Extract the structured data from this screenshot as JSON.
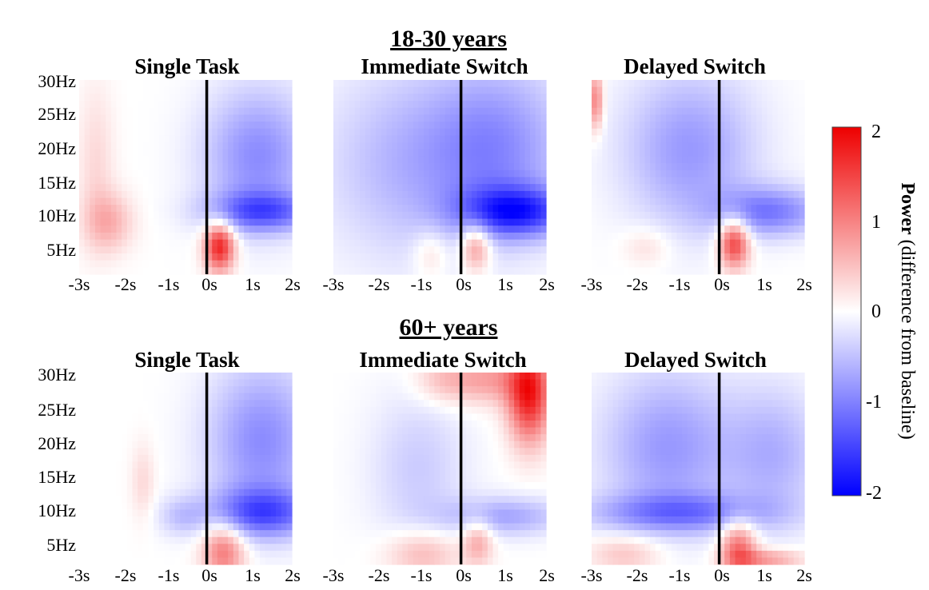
{
  "figure": {
    "groups": [
      {
        "title": "18-30 years",
        "panels": [
          {
            "title": "Single Task"
          },
          {
            "title": "Immediate Switch"
          },
          {
            "title": "Delayed Switch"
          }
        ]
      },
      {
        "title": "60+ years",
        "panels": [
          {
            "title": "Single Task"
          },
          {
            "title": "Immediate Switch"
          },
          {
            "title": "Delayed Switch"
          }
        ]
      }
    ],
    "y_ticks": [
      "30Hz",
      "25Hz",
      "20Hz",
      "15Hz",
      "10Hz",
      "5Hz"
    ],
    "x_ticks": [
      "-3s",
      "-2s",
      "-1s",
      "0s",
      "1s",
      "2s"
    ],
    "colorbar": {
      "label_bold": "Power",
      "label_rest": " (difference from baseline)",
      "ticks": [
        "2",
        "1",
        "0",
        "-1",
        "-2"
      ],
      "colors": {
        "max": "#ee0000",
        "mid": "#ffffff",
        "min": "#0000ff"
      }
    }
  },
  "chart_data": {
    "type": "heatmap",
    "xlabel": "",
    "ylabel": "",
    "x_range_s": [
      -3,
      2
    ],
    "y_range_hz": [
      2,
      30
    ],
    "color_range": [
      -2,
      2
    ],
    "colorbar_label": "Power (difference from baseline)",
    "event_marker_s": 0,
    "panels": [
      {
        "group": "18-30 years",
        "condition": "Single Task",
        "blobs": [
          {
            "t": 0.3,
            "f": 6,
            "dt": 0.25,
            "df": 2.5,
            "power": 1.8
          },
          {
            "t": -2.3,
            "f": 9.5,
            "dt": 0.4,
            "df": 3,
            "power": 0.6
          },
          {
            "t": -2.6,
            "f": 18,
            "dt": 0.3,
            "df": 8,
            "power": 0.3
          },
          {
            "t": 1.3,
            "f": 11,
            "dt": 0.9,
            "df": 2,
            "power": -1.1
          },
          {
            "t": 1.2,
            "f": 19,
            "dt": 0.9,
            "df": 7,
            "power": -0.9
          }
        ]
      },
      {
        "group": "18-30 years",
        "condition": "Immediate Switch",
        "blobs": [
          {
            "t": 0.35,
            "f": 6,
            "dt": 0.25,
            "df": 2.5,
            "power": 1.0
          },
          {
            "t": -0.7,
            "f": 5,
            "dt": 0.3,
            "df": 2.5,
            "power": 0.4
          },
          {
            "t": 1.3,
            "f": 11,
            "dt": 0.9,
            "df": 2.5,
            "power": -1.5
          },
          {
            "t": 0.8,
            "f": 20,
            "dt": 1.2,
            "df": 9,
            "power": -0.9
          },
          {
            "t": -1.5,
            "f": 18,
            "dt": 1.3,
            "df": 10,
            "power": -0.5
          }
        ]
      },
      {
        "group": "18-30 years",
        "condition": "Delayed Switch",
        "blobs": [
          {
            "t": 0.35,
            "f": 6.5,
            "dt": 0.25,
            "df": 2.5,
            "power": 1.6
          },
          {
            "t": -2.9,
            "f": 27,
            "dt": 0.12,
            "df": 3,
            "power": 1.0
          },
          {
            "t": -1.7,
            "f": 6,
            "dt": 0.4,
            "df": 2,
            "power": 0.3
          },
          {
            "t": 1.2,
            "f": 11,
            "dt": 0.9,
            "df": 2.5,
            "power": -1.0
          },
          {
            "t": -0.7,
            "f": 20,
            "dt": 1.1,
            "df": 8,
            "power": -0.8
          }
        ]
      },
      {
        "group": "60+ years",
        "condition": "Single Task",
        "blobs": [
          {
            "t": 0.4,
            "f": 4,
            "dt": 0.35,
            "df": 3,
            "power": 1.1
          },
          {
            "t": -1.5,
            "f": 14,
            "dt": 0.2,
            "df": 4,
            "power": 0.3
          },
          {
            "t": 1.3,
            "f": 9.5,
            "dt": 0.9,
            "df": 2.5,
            "power": -1.2
          },
          {
            "t": 1.3,
            "f": 20,
            "dt": 0.9,
            "df": 8,
            "power": -0.9
          },
          {
            "t": -0.6,
            "f": 9,
            "dt": 0.4,
            "df": 2,
            "power": -0.4
          }
        ]
      },
      {
        "group": "60+ years",
        "condition": "Immediate Switch",
        "blobs": [
          {
            "t": 1.6,
            "f": 27,
            "dt": 0.35,
            "df": 5,
            "power": 1.8
          },
          {
            "t": 0.7,
            "f": 29,
            "dt": 0.6,
            "df": 2.5,
            "power": 0.7
          },
          {
            "t": -0.4,
            "f": 29,
            "dt": 0.5,
            "df": 2.5,
            "power": 0.5
          },
          {
            "t": -0.9,
            "f": 3.5,
            "dt": 0.6,
            "df": 2.5,
            "power": 0.6
          },
          {
            "t": 0.4,
            "f": 5.5,
            "dt": 0.25,
            "df": 2.5,
            "power": 0.7
          },
          {
            "t": 1.0,
            "f": 9,
            "dt": 1.0,
            "df": 2,
            "power": -0.7
          },
          {
            "t": -1.0,
            "f": 16,
            "dt": 0.8,
            "df": 8,
            "power": -0.4
          }
        ]
      },
      {
        "group": "60+ years",
        "condition": "Delayed Switch",
        "blobs": [
          {
            "t": 0.45,
            "f": 4.5,
            "dt": 0.3,
            "df": 3,
            "power": 1.2
          },
          {
            "t": -2.2,
            "f": 3.5,
            "dt": 0.6,
            "df": 2,
            "power": 0.5
          },
          {
            "t": 1.1,
            "f": 2.8,
            "dt": 0.6,
            "df": 1,
            "power": 0.8
          },
          {
            "t": -0.9,
            "f": 9.5,
            "dt": 1.5,
            "df": 2,
            "power": -0.9
          },
          {
            "t": -1.2,
            "f": 19,
            "dt": 1.1,
            "df": 8,
            "power": -0.8
          },
          {
            "t": 1.3,
            "f": 18,
            "dt": 0.8,
            "df": 7,
            "power": -0.6
          }
        ]
      }
    ]
  }
}
